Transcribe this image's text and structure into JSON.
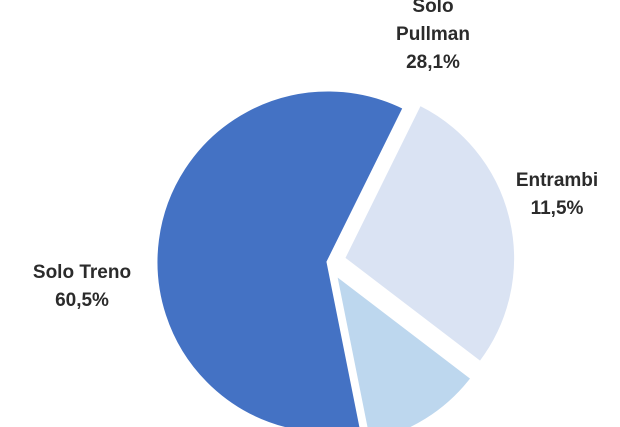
{
  "chart_data": {
    "type": "pie",
    "title": "",
    "slices": [
      {
        "label_lines": [
          "Solo",
          "Pullman"
        ],
        "value_label": "28,1%",
        "value": 28.1,
        "color": "#dae3f3"
      },
      {
        "label_lines": [
          "Entrambi"
        ],
        "value_label": "11,5%",
        "value": 11.5,
        "color": "#bdd7ee"
      },
      {
        "label_lines": [
          "Solo Treno"
        ],
        "value_label": "60,5%",
        "value": 60.5,
        "color": "#4472c4"
      }
    ],
    "exploded": true,
    "legend": "none"
  }
}
